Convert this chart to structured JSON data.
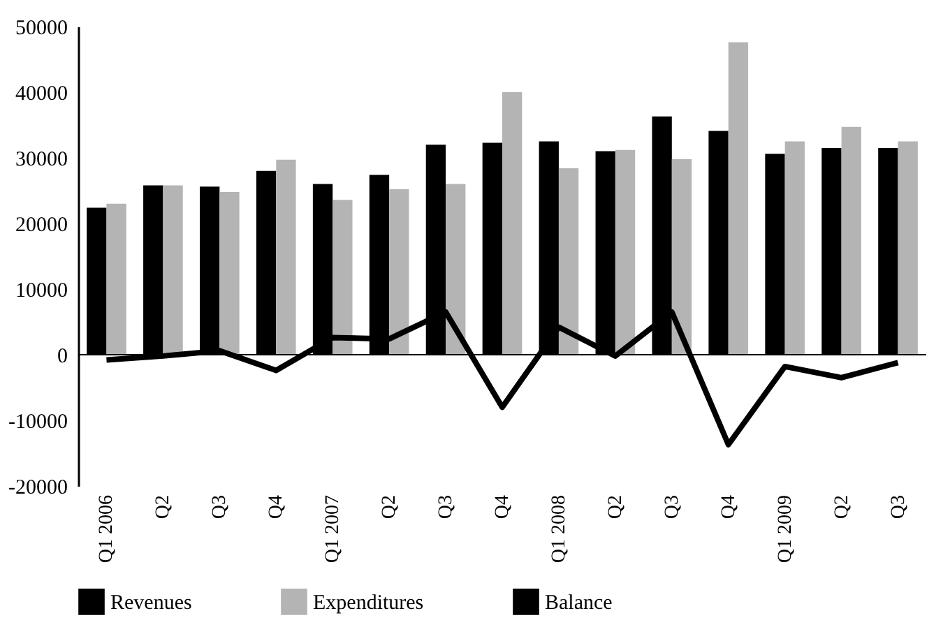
{
  "chart_data": {
    "type": "bar",
    "categories": [
      "Q1 2006",
      "Q2",
      "Q3",
      "Q4",
      "Q1 2007",
      "Q2",
      "Q3",
      "Q4",
      "Q1 2008",
      "Q2",
      "Q3",
      "Q4",
      "Q1 2009",
      "Q2",
      "Q3"
    ],
    "series": [
      {
        "name": "Revenues",
        "color": "#000000",
        "values": [
          22400,
          25800,
          25600,
          28000,
          26000,
          27400,
          32000,
          32300,
          32500,
          31000,
          36300,
          34100,
          30600,
          31500,
          31500
        ]
      },
      {
        "name": "Expenditures",
        "color": "#b4b4b4",
        "values": [
          23000,
          25800,
          24800,
          29700,
          23600,
          25200,
          26000,
          40000,
          28400,
          31200,
          29800,
          47600,
          32500,
          34700,
          32500
        ]
      },
      {
        "name": "Balance",
        "type": "line",
        "color": "#000000",
        "values": [
          -800,
          -200,
          600,
          -2400,
          2600,
          2400,
          6500,
          -8000,
          4200,
          -200,
          6500,
          -13700,
          -1800,
          -3500,
          -1200
        ]
      }
    ],
    "ylim": [
      -20000,
      50000
    ],
    "yticks": [
      -20000,
      -10000,
      0,
      10000,
      20000,
      30000,
      40000,
      50000
    ],
    "ref_lines": [
      {
        "axis": "y",
        "value": 0,
        "color": "#000000"
      }
    ],
    "grid": false,
    "legend": "bottom"
  }
}
